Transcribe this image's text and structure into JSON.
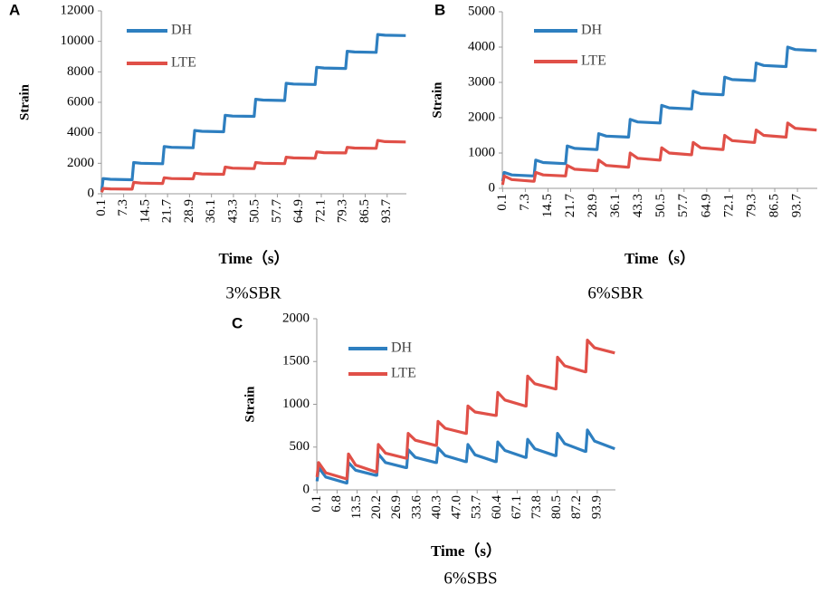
{
  "chart_data": [
    {
      "type": "line",
      "panel": "A",
      "caption": "3%SBR",
      "x_label": "Time（s）",
      "y_label": "Strain",
      "x": [
        0.1,
        0.6,
        3,
        9.8,
        10.1,
        10.6,
        13,
        19.8,
        20.1,
        20.6,
        23,
        29.8,
        30.1,
        30.6,
        33,
        39.8,
        40.1,
        40.6,
        43,
        49.8,
        50.1,
        50.6,
        53,
        59.8,
        60.1,
        60.6,
        63,
        69.8,
        70.1,
        70.6,
        73,
        79.8,
        80.1,
        80.6,
        83,
        89.8,
        90.1,
        90.6,
        93,
        99.8
      ],
      "xlim": [
        0,
        100
      ],
      "xticks": [
        0.1,
        7.3,
        14.5,
        21.7,
        28.9,
        36.1,
        43.3,
        50.5,
        57.7,
        64.9,
        72.1,
        79.3,
        86.5,
        93.7
      ],
      "ylim": [
        0,
        12000
      ],
      "yticks": [
        0,
        2000,
        4000,
        6000,
        8000,
        10000,
        12000
      ],
      "series": [
        {
          "name": "DH",
          "color": "#2e7fc0",
          "values": [
            200,
            1000,
            950,
            920,
            920,
            2050,
            2000,
            1970,
            1970,
            3100,
            3050,
            3020,
            3020,
            4150,
            4100,
            4070,
            4070,
            5150,
            5100,
            5080,
            5080,
            6200,
            6150,
            6120,
            6120,
            7250,
            7200,
            7170,
            7170,
            8300,
            8250,
            8220,
            8220,
            9350,
            9300,
            9280,
            9280,
            10450,
            10400,
            10380
          ]
        },
        {
          "name": "LTE",
          "color": "#e05048",
          "values": [
            100,
            350,
            320,
            300,
            300,
            750,
            700,
            680,
            680,
            1050,
            1000,
            980,
            980,
            1350,
            1300,
            1280,
            1280,
            1750,
            1680,
            1650,
            1650,
            2050,
            2000,
            1980,
            1980,
            2400,
            2350,
            2330,
            2330,
            2750,
            2700,
            2680,
            2680,
            3050,
            3000,
            2980,
            2980,
            3500,
            3420,
            3400
          ]
        }
      ]
    },
    {
      "type": "line",
      "panel": "B",
      "caption": "6%SBR",
      "x_label": "Time（s）",
      "y_label": "Strain",
      "x": [
        0.1,
        0.6,
        3,
        9.8,
        10.1,
        10.6,
        13,
        19.8,
        20.1,
        20.6,
        23,
        29.8,
        30.1,
        30.6,
        33,
        39.8,
        40.1,
        40.6,
        43,
        49.8,
        50.1,
        50.6,
        53,
        59.8,
        60.1,
        60.6,
        63,
        69.8,
        70.1,
        70.6,
        73,
        79.8,
        80.1,
        80.6,
        83,
        89.8,
        90.1,
        90.6,
        93,
        99.8
      ],
      "xlim": [
        0,
        100
      ],
      "xticks": [
        0.1,
        7.3,
        14.5,
        21.7,
        28.9,
        36.1,
        43.3,
        50.5,
        57.7,
        64.9,
        72.1,
        79.3,
        86.5,
        93.7
      ],
      "ylim": [
        0,
        5000
      ],
      "yticks": [
        0,
        1000,
        2000,
        3000,
        4000,
        5000
      ],
      "series": [
        {
          "name": "DH",
          "color": "#2e7fc0",
          "values": [
            200,
            450,
            380,
            350,
            350,
            800,
            730,
            700,
            700,
            1200,
            1130,
            1100,
            1100,
            1550,
            1480,
            1450,
            1450,
            1950,
            1880,
            1850,
            1850,
            2350,
            2280,
            2250,
            2250,
            2750,
            2680,
            2650,
            2650,
            3150,
            3080,
            3050,
            3050,
            3550,
            3480,
            3450,
            3450,
            4000,
            3930,
            3900
          ]
        },
        {
          "name": "LTE",
          "color": "#e05048",
          "values": [
            100,
            350,
            250,
            200,
            200,
            450,
            380,
            350,
            350,
            650,
            540,
            500,
            500,
            800,
            650,
            600,
            600,
            1000,
            850,
            800,
            800,
            1150,
            1000,
            950,
            950,
            1300,
            1150,
            1100,
            1100,
            1500,
            1350,
            1300,
            1300,
            1650,
            1500,
            1450,
            1450,
            1850,
            1700,
            1650
          ]
        }
      ]
    },
    {
      "type": "line",
      "panel": "C",
      "caption": "6%SBS",
      "x_label": "Time（s）",
      "y_label": "Strain",
      "x": [
        0.1,
        0.6,
        3,
        9.8,
        10.1,
        10.6,
        13,
        19.8,
        20.1,
        20.6,
        23,
        29.8,
        30.1,
        30.6,
        33,
        39.8,
        40.1,
        40.6,
        43,
        49.8,
        50.1,
        50.6,
        53,
        59.8,
        60.1,
        60.6,
        63,
        69.8,
        70.1,
        70.6,
        73,
        79.8,
        80.1,
        80.6,
        83,
        89.8,
        90.1,
        90.6,
        93,
        99.8
      ],
      "xlim": [
        0,
        100
      ],
      "xticks": [
        0.1,
        6.8,
        13.5,
        20.2,
        26.9,
        33.6,
        40.3,
        {
          "value": 47,
          "label": "47.0"
        },
        53.7,
        60.4,
        67.1,
        73.8,
        80.5,
        87.2,
        93.9
      ],
      "ylim": [
        0,
        2000
      ],
      "yticks": [
        0,
        500,
        1000,
        1500,
        2000
      ],
      "series": [
        {
          "name": "DH",
          "color": "#2e7fc0",
          "values": [
            100,
            260,
            150,
            80,
            80,
            320,
            230,
            170,
            170,
            420,
            320,
            260,
            260,
            470,
            380,
            320,
            320,
            490,
            400,
            330,
            330,
            530,
            410,
            330,
            330,
            560,
            460,
            380,
            380,
            590,
            480,
            400,
            400,
            660,
            540,
            450,
            450,
            700,
            570,
            480
          ]
        },
        {
          "name": "LTE",
          "color": "#e05048",
          "values": [
            150,
            320,
            200,
            130,
            130,
            420,
            290,
            210,
            210,
            530,
            430,
            370,
            370,
            660,
            580,
            520,
            520,
            800,
            720,
            660,
            660,
            980,
            910,
            870,
            870,
            1140,
            1050,
            980,
            980,
            1330,
            1240,
            1180,
            1180,
            1550,
            1450,
            1380,
            1380,
            1750,
            1660,
            1600
          ]
        }
      ]
    }
  ]
}
